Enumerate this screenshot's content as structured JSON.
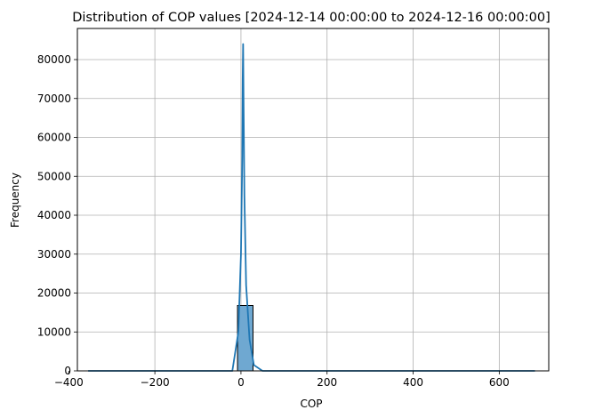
{
  "chart_data": {
    "type": "bar",
    "title": "Distribution of COP values [2024-12-14 00:00:00 to 2024-12-16 00:00:00]",
    "xlabel": "COP",
    "ylabel": "Frequency",
    "xlim": [
      -380,
      715
    ],
    "ylim": [
      0,
      88000
    ],
    "grid": true,
    "x_ticks": [
      -400,
      -200,
      0,
      200,
      400,
      600
    ],
    "y_ticks": [
      0,
      10000,
      20000,
      30000,
      40000,
      50000,
      60000,
      70000,
      80000
    ],
    "bar_color": "#6fa8d1",
    "line_color": "#1f77b4",
    "histogram": {
      "bins": [
        {
          "x0": -8,
          "x1": 28,
          "count": 16800
        }
      ]
    },
    "kde_curve": {
      "x": [
        -355,
        -200,
        -20,
        -6,
        0,
        3,
        4,
        5,
        6,
        8,
        12,
        20,
        30,
        50,
        200,
        400,
        683
      ],
      "y": [
        0,
        0,
        0,
        10000,
        30000,
        55000,
        75000,
        84000,
        70000,
        45000,
        22000,
        8000,
        1500,
        0,
        0,
        0,
        0
      ]
    }
  }
}
